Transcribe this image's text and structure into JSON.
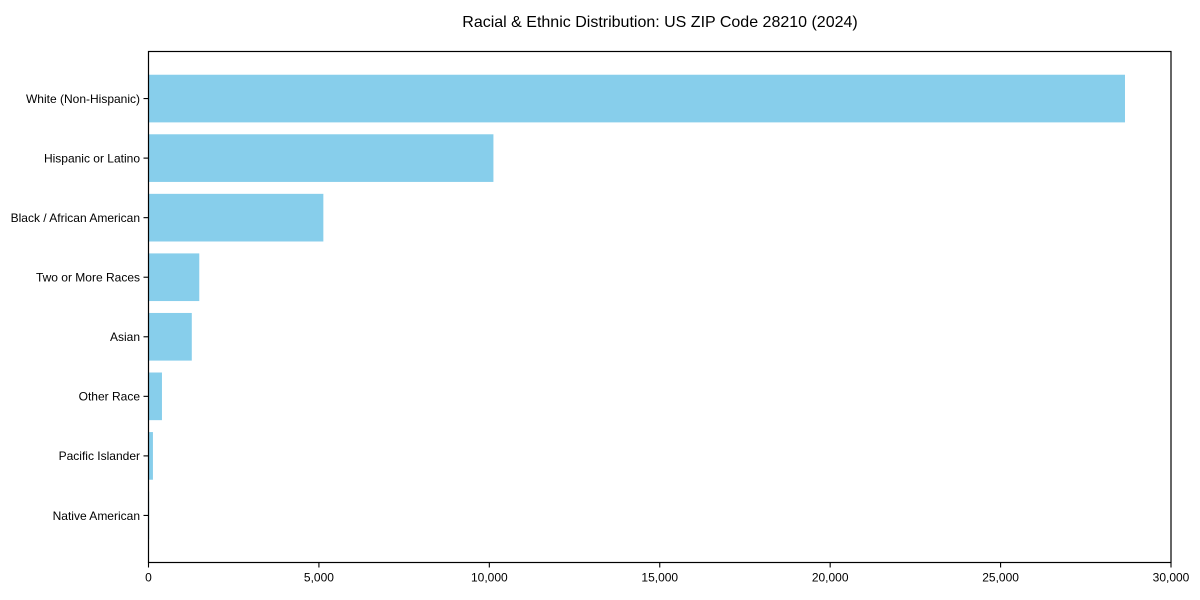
{
  "title": "Racial & Ethnic Distribution: US ZIP Code 28210 (2024)",
  "chart_data": {
    "type": "bar",
    "orientation": "horizontal",
    "title": "Racial & Ethnic Distribution: US ZIP Code 28210 (2024)",
    "xlabel": "",
    "ylabel": "",
    "categories": [
      "White (Non-Hispanic)",
      "Hispanic or Latino",
      "Black / African American",
      "Two or More Races",
      "Asian",
      "Other Race",
      "Pacific Islander",
      "Native American"
    ],
    "values": [
      28650,
      10120,
      5130,
      1490,
      1270,
      395,
      130,
      20
    ],
    "xlim": [
      0,
      30000
    ],
    "x_ticks": [
      0,
      5000,
      10000,
      15000,
      20000,
      25000,
      30000
    ],
    "x_tick_labels": [
      "0",
      "5,000",
      "10,000",
      "15,000",
      "20,000",
      "25,000",
      "30,000"
    ],
    "bar_color": "#87CEEB",
    "text_color": "#000000",
    "spine_color": "#000000",
    "background_color": "#ffffff",
    "grid": false,
    "legend": null
  }
}
